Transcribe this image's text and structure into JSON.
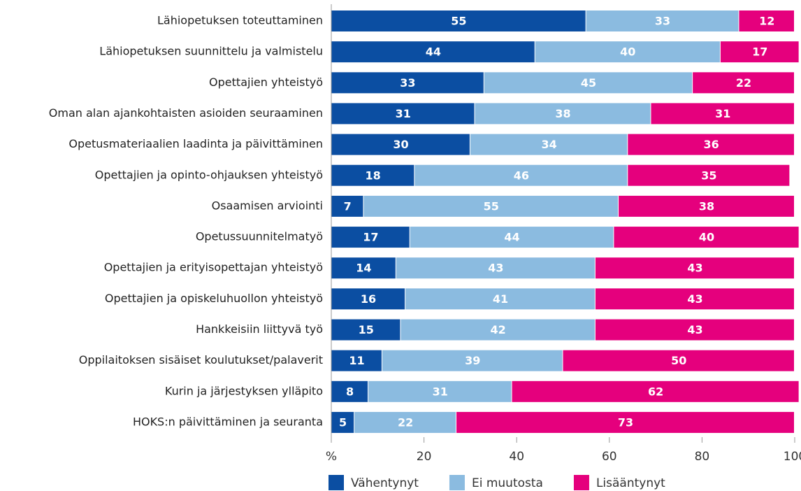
{
  "chart_data": {
    "type": "stacked-barh",
    "categories": [
      "Lähiopetuksen toteuttaminen",
      "Lähiopetuksen suunnittelu ja valmistelu",
      "Opettajien yhteistyö",
      "Oman alan ajankohtaisten asioiden seuraaminen",
      "Opetusmateriaalien laadinta ja päivittäminen",
      "Opettajien ja opinto-ohjauksen yhteistyö",
      "Osaamisen arviointi",
      "Opetussuunnitelmatyö",
      "Opettajien ja erityisopettajan yhteistyö",
      "Opettajien ja opiskeluhuollon yhteistyö",
      "Hankkeisiin liittyvä työ",
      "Oppilaitoksen sisäiset koulutukset/palaverit",
      "Kurin ja järjestyksen ylläpito",
      "HOKS:n päivittäminen ja seuranta"
    ],
    "series": [
      {
        "name": "Vähentynyt",
        "color": "#0b4ea2",
        "values": [
          55,
          44,
          33,
          31,
          30,
          18,
          7,
          17,
          14,
          16,
          15,
          11,
          8,
          5
        ]
      },
      {
        "name": "Ei muutosta",
        "color": "#8bbbe0",
        "values": [
          33,
          40,
          45,
          38,
          34,
          46,
          55,
          44,
          43,
          41,
          42,
          39,
          31,
          22
        ]
      },
      {
        "name": "Lisääntynyt",
        "color": "#e5007d",
        "values": [
          12,
          17,
          22,
          31,
          36,
          35,
          38,
          40,
          43,
          43,
          43,
          50,
          62,
          73
        ]
      }
    ],
    "xlim": [
      0,
      100
    ],
    "xticks": [
      {
        "value": 0,
        "label": "%"
      },
      20,
      40,
      60,
      80,
      100
    ],
    "legend": "bottom"
  }
}
